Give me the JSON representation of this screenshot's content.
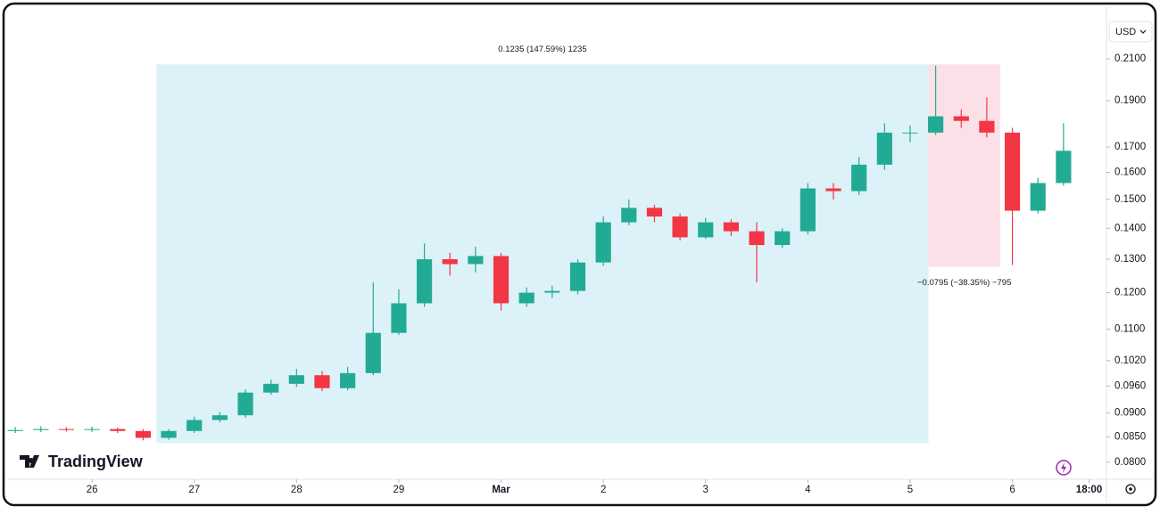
{
  "chart_data": {
    "type": "candlestick",
    "currency": "USD",
    "brand": "TradingView",
    "log_scale": true,
    "grid": false,
    "up_color": "#22ab94",
    "down_color": "#f23645",
    "xlim": [
      -0.83,
      9.92
    ],
    "ylim": [
      0.0768,
      0.2366
    ],
    "xticks": [
      {
        "value": 0,
        "label": "26"
      },
      {
        "value": 1,
        "label": "27"
      },
      {
        "value": 2,
        "label": "28"
      },
      {
        "value": 3,
        "label": "29"
      },
      {
        "value": 4,
        "label": "Mar"
      },
      {
        "value": 5,
        "label": "2"
      },
      {
        "value": 6,
        "label": "3"
      },
      {
        "value": 7,
        "label": "4"
      },
      {
        "value": 8,
        "label": "5"
      },
      {
        "value": 9,
        "label": "6"
      },
      {
        "value": 9.75,
        "label": "18:00"
      }
    ],
    "yticks": [
      {
        "value": 0.21,
        "label": "0.2100"
      },
      {
        "value": 0.19,
        "label": "0.1900"
      },
      {
        "value": 0.17,
        "label": "0.1700"
      },
      {
        "value": 0.16,
        "label": "0.1600"
      },
      {
        "value": 0.15,
        "label": "0.1500"
      },
      {
        "value": 0.14,
        "label": "0.1400"
      },
      {
        "value": 0.13,
        "label": "0.1300"
      },
      {
        "value": 0.12,
        "label": "0.1200"
      },
      {
        "value": 0.11,
        "label": "0.1100"
      },
      {
        "value": 0.102,
        "label": "0.1020"
      },
      {
        "value": 0.096,
        "label": "0.0960"
      },
      {
        "value": 0.09,
        "label": "0.0900"
      },
      {
        "value": 0.085,
        "label": "0.0850"
      },
      {
        "value": 0.08,
        "label": "0.0800"
      }
    ],
    "ranges": [
      {
        "x": [
          0.63,
          8.18
        ],
        "y": [
          0.0837,
          0.2072
        ],
        "label": "0.1235 (147.59%) 1235",
        "color": "#dcf2f8"
      },
      {
        "x": [
          8.18,
          8.88
        ],
        "y": [
          0.1277,
          0.2072
        ],
        "label": "−0.0795 (−38.35%) −795",
        "color": "#fce0e7"
      }
    ],
    "x": [
      -0.75,
      -0.5,
      -0.25,
      0,
      0.25,
      0.5,
      0.75,
      1,
      1.25,
      1.5,
      1.75,
      2,
      2.25,
      2.5,
      2.75,
      3,
      3.25,
      3.5,
      3.75,
      4,
      4.25,
      4.5,
      4.75,
      5,
      5.25,
      5.5,
      5.75,
      6,
      6.25,
      6.5,
      6.75,
      7,
      7.25,
      7.5,
      7.75,
      8,
      8.25,
      8.5,
      8.75,
      9,
      9.25,
      9.5
    ],
    "open": [
      0.0862,
      0.0864,
      0.0866,
      0.0865,
      0.0866,
      0.0862,
      0.0848,
      0.0862,
      0.0885,
      0.0895,
      0.0945,
      0.0965,
      0.0985,
      0.0955,
      0.099,
      0.109,
      0.117,
      0.13,
      0.1285,
      0.131,
      0.117,
      0.12,
      0.1205,
      0.129,
      0.142,
      0.147,
      0.144,
      0.137,
      0.142,
      0.139,
      0.1345,
      0.139,
      0.154,
      0.153,
      0.163,
      0.176,
      0.176,
      0.183,
      0.181,
      0.176,
      0.146,
      0.156
    ],
    "high": [
      0.087,
      0.0872,
      0.087,
      0.0871,
      0.0869,
      0.0866,
      0.0866,
      0.0892,
      0.0902,
      0.0952,
      0.0975,
      0.1,
      0.0995,
      0.1005,
      0.123,
      0.121,
      0.135,
      0.132,
      0.134,
      0.132,
      0.1215,
      0.122,
      0.13,
      0.144,
      0.15,
      0.148,
      0.145,
      0.1435,
      0.143,
      0.142,
      0.14,
      0.156,
      0.156,
      0.166,
      0.18,
      0.179,
      0.2065,
      0.186,
      0.1915,
      0.178,
      0.158,
      0.18
    ],
    "low": [
      0.0858,
      0.086,
      0.0861,
      0.086,
      0.0858,
      0.0843,
      0.0844,
      0.0858,
      0.088,
      0.089,
      0.094,
      0.0958,
      0.0948,
      0.095,
      0.0985,
      0.1085,
      0.116,
      0.125,
      0.126,
      0.115,
      0.116,
      0.1185,
      0.1195,
      0.128,
      0.141,
      0.142,
      0.136,
      0.1365,
      0.1375,
      0.123,
      0.1335,
      0.138,
      0.15,
      0.1515,
      0.161,
      0.172,
      0.175,
      0.178,
      0.174,
      0.1282,
      0.145,
      0.155
    ],
    "close": [
      0.0864,
      0.0866,
      0.0865,
      0.0866,
      0.0862,
      0.0848,
      0.0862,
      0.0885,
      0.0895,
      0.0945,
      0.0965,
      0.0985,
      0.0955,
      0.099,
      0.109,
      0.117,
      0.13,
      0.1285,
      0.131,
      0.117,
      0.12,
      0.1205,
      0.129,
      0.142,
      0.147,
      0.144,
      0.137,
      0.142,
      0.139,
      0.1345,
      0.139,
      0.154,
      0.153,
      0.163,
      0.176,
      0.176,
      0.183,
      0.181,
      0.176,
      0.146,
      0.156,
      0.1685
    ]
  }
}
